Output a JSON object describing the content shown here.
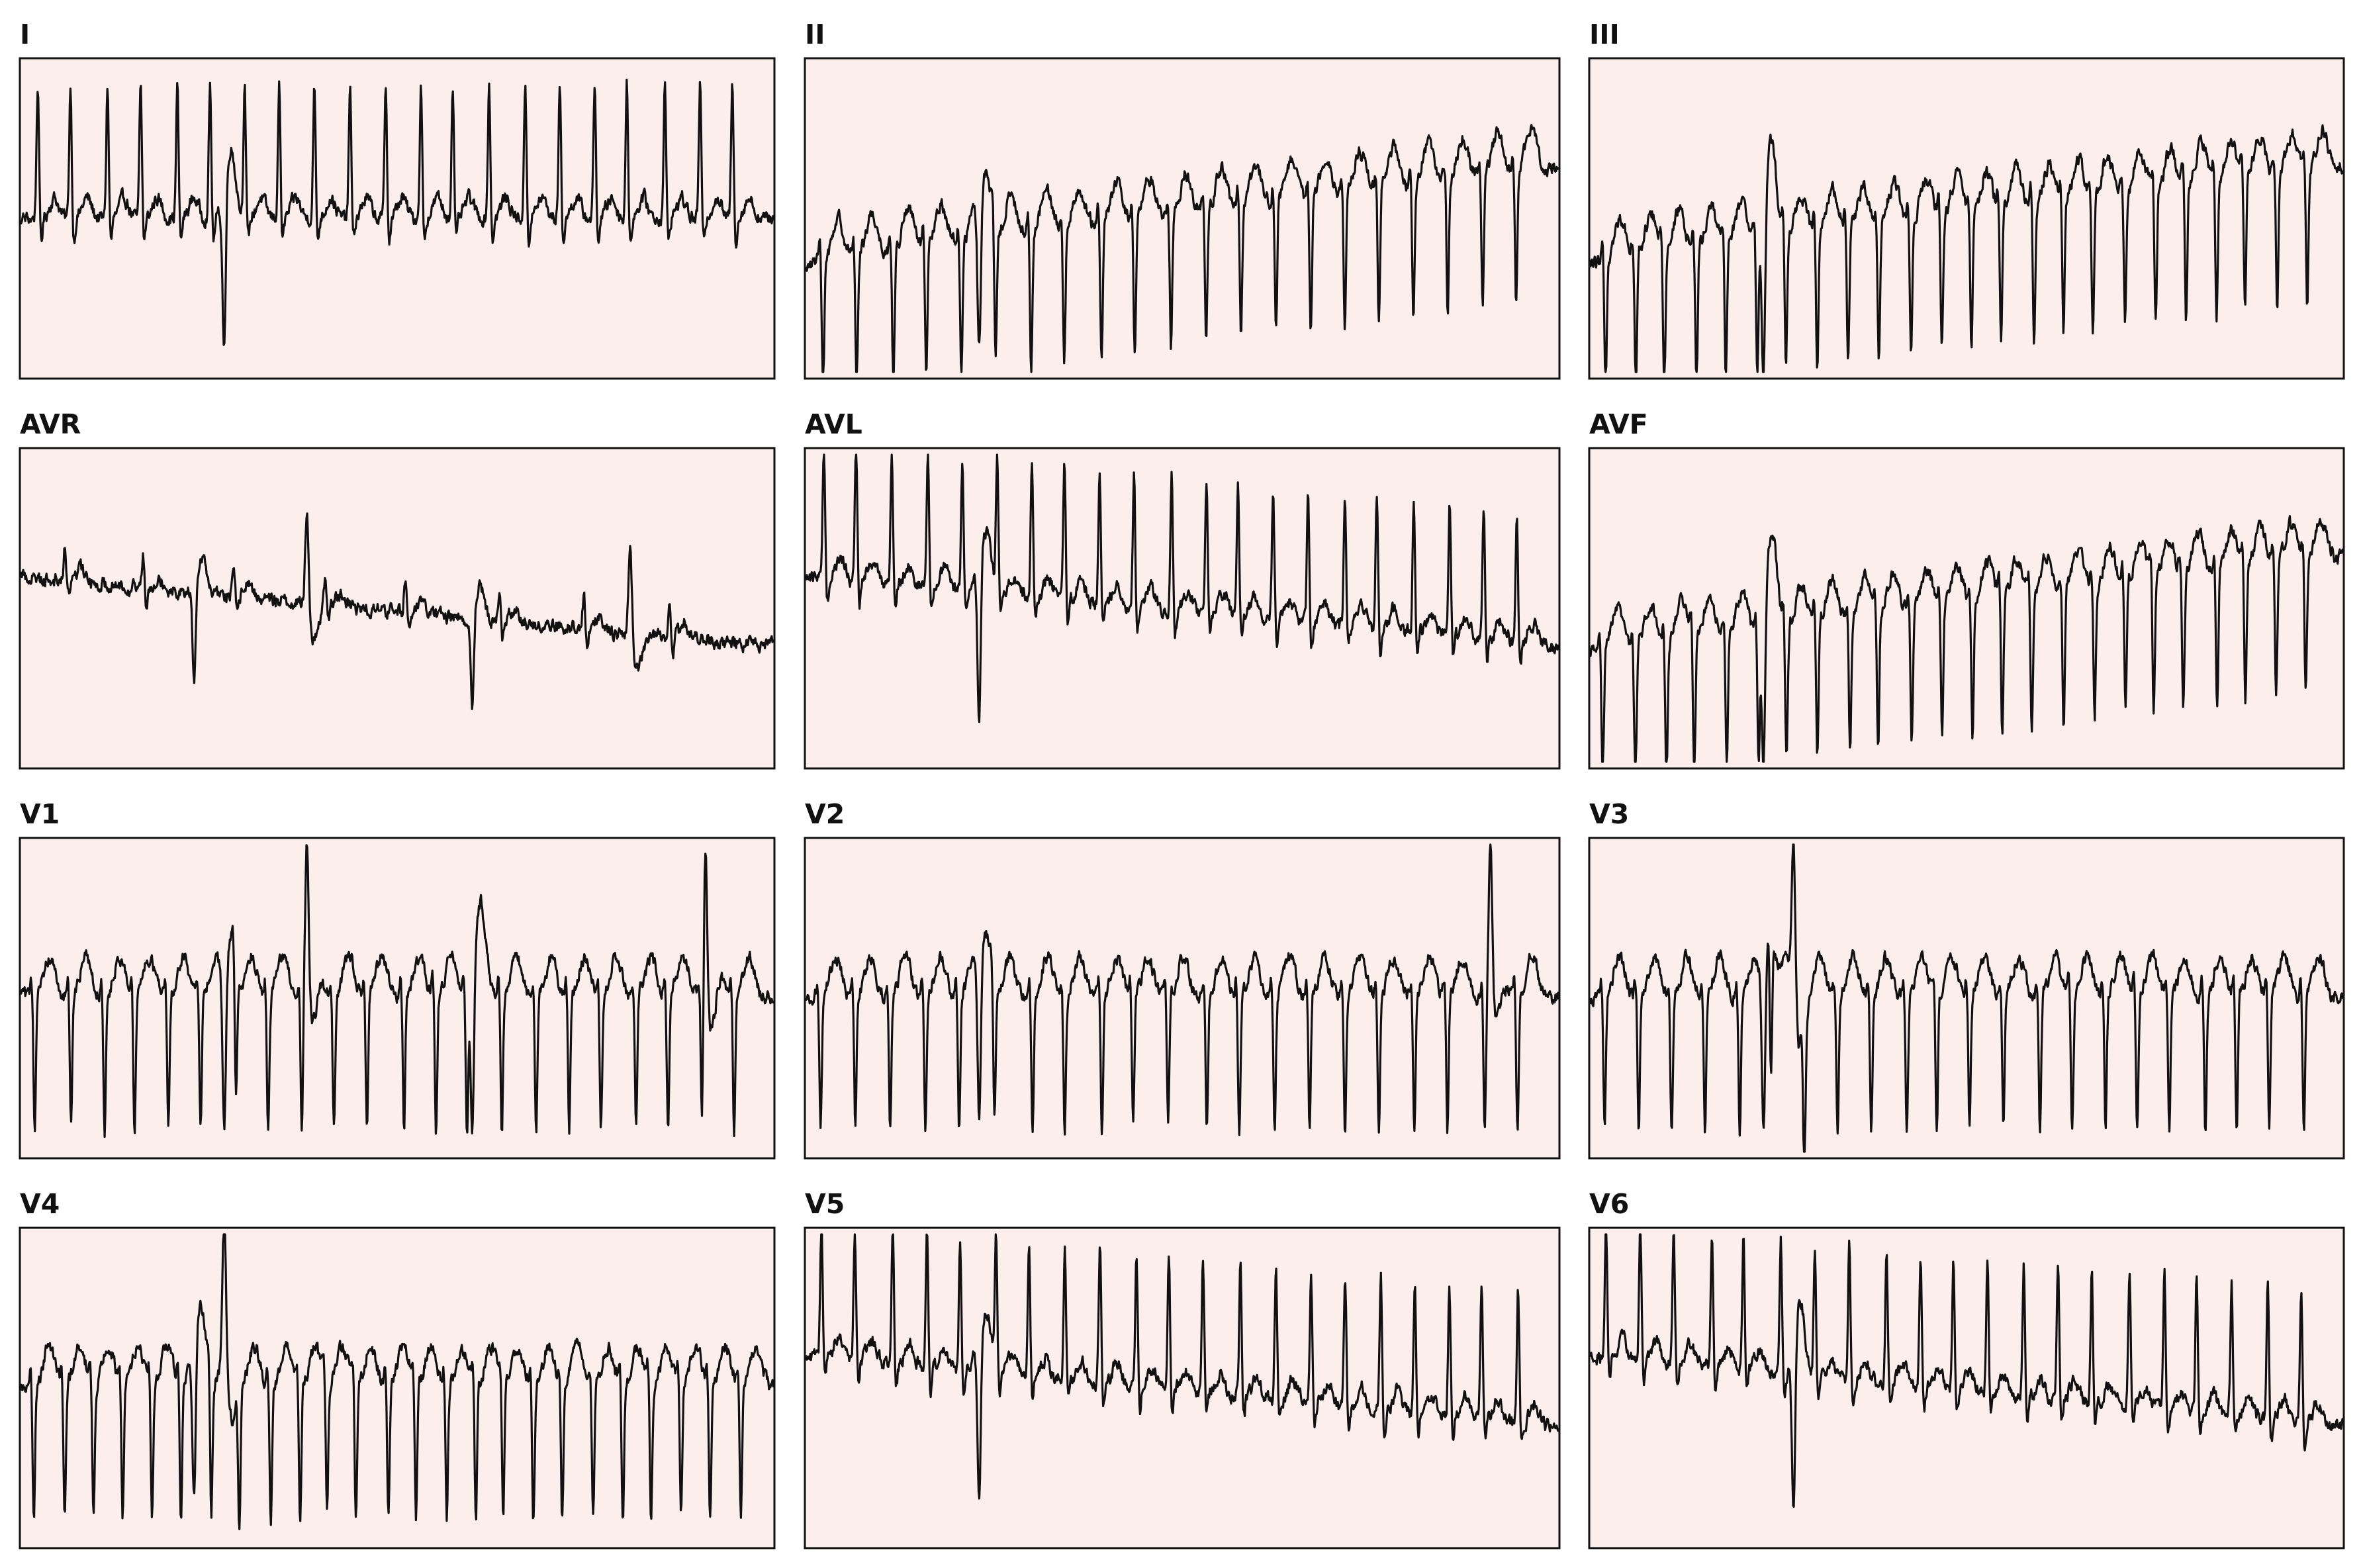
{
  "colors": {
    "panel_background": "#fdeeee",
    "trace": "#111111",
    "frame": "#111111",
    "page_background": "#ffffff"
  },
  "chart_data": {
    "type": "line",
    "title": "",
    "xlabel": "",
    "ylabel": "",
    "grid": false,
    "legend": "none",
    "panels": [
      {
        "lead": "I",
        "rhythm": "narrow-complex tachycardia",
        "beats": 21,
        "qrs": "upright",
        "baseline_drift": "flat",
        "ectopic_at": [
          0.27
        ],
        "ylim": [
          -1.2,
          1.2
        ]
      },
      {
        "lead": "II",
        "rhythm": "narrow-complex tachycardia",
        "beats": 21,
        "qrs": "negative",
        "baseline_drift": "rising",
        "ectopic_at": [
          0.23
        ],
        "ylim": [
          -1.2,
          1.2
        ]
      },
      {
        "lead": "III",
        "rhythm": "narrow-complex tachycardia",
        "beats": 24,
        "qrs": "negative",
        "baseline_drift": "rising",
        "ectopic_at": [
          0.23
        ],
        "ylim": [
          -1.2,
          1.2
        ]
      },
      {
        "lead": "AVR",
        "rhythm": "narrow-complex tachycardia",
        "beats": 8,
        "qrs": "low-amplitude",
        "baseline_drift": "falling",
        "ectopic_at": [
          0.23,
          0.38,
          0.6,
          0.81
        ],
        "ylim": [
          -1.2,
          1.2
        ]
      },
      {
        "lead": "AVL",
        "rhythm": "narrow-complex tachycardia",
        "beats": 21,
        "qrs": "upright",
        "baseline_drift": "falling",
        "ectopic_at": [
          0.23
        ],
        "ylim": [
          -1.2,
          1.2
        ]
      },
      {
        "lead": "AVF",
        "rhythm": "narrow-complex tachycardia",
        "beats": 24,
        "qrs": "negative",
        "baseline_drift": "rising",
        "ectopic_at": [
          0.23
        ],
        "ylim": [
          -1.2,
          1.2
        ]
      },
      {
        "lead": "V1",
        "rhythm": "narrow-complex tachycardia",
        "beats": 22,
        "qrs": "negative",
        "baseline_drift": "flat",
        "ectopic_at": [
          0.27,
          0.38,
          0.6,
          0.91
        ],
        "ylim": [
          -1.2,
          1.2
        ]
      },
      {
        "lead": "V2",
        "rhythm": "narrow-complex tachycardia",
        "beats": 21,
        "qrs": "negative",
        "baseline_drift": "flat",
        "ectopic_at": [
          0.23,
          0.91
        ],
        "ylim": [
          -1.2,
          1.2
        ]
      },
      {
        "lead": "V3",
        "rhythm": "narrow-complex tachycardia",
        "beats": 22,
        "qrs": "negative",
        "baseline_drift": "flat",
        "ectopic_at": [
          0.23,
          0.27
        ],
        "ylim": [
          -1.2,
          1.2
        ]
      },
      {
        "lead": "V4",
        "rhythm": "narrow-complex tachycardia",
        "beats": 25,
        "qrs": "negative",
        "baseline_drift": "flat",
        "ectopic_at": [
          0.23,
          0.27
        ],
        "ylim": [
          -1.2,
          1.2
        ]
      },
      {
        "lead": "V5",
        "rhythm": "narrow-complex tachycardia",
        "beats": 21,
        "qrs": "upright",
        "baseline_drift": "falling",
        "ectopic_at": [
          0.23
        ],
        "ylim": [
          -1.2,
          1.2
        ]
      },
      {
        "lead": "V6",
        "rhythm": "narrow-complex tachycardia",
        "beats": 21,
        "qrs": "upright",
        "baseline_drift": "falling",
        "ectopic_at": [
          0.27
        ],
        "ylim": [
          -1.2,
          1.2
        ]
      }
    ]
  }
}
